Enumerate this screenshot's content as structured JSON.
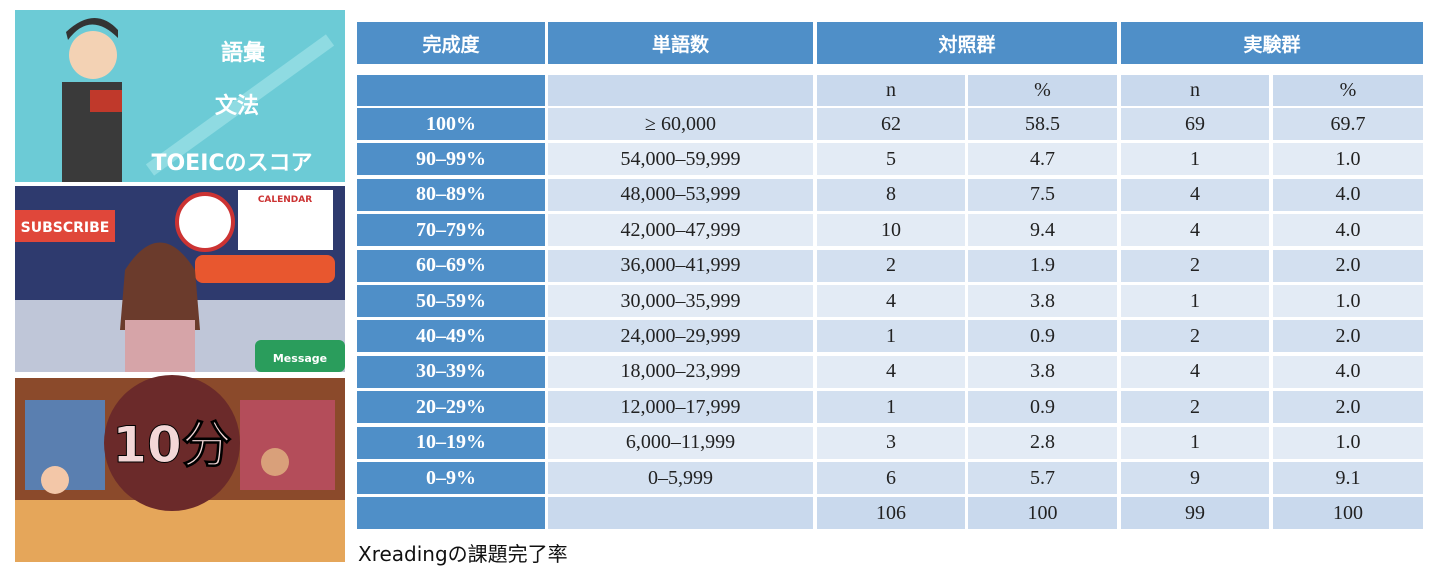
{
  "images": [
    {
      "texts": [
        "語彙",
        "文法",
        "TOEICのスコア"
      ]
    },
    {
      "texts": [
        "SUBSCRIBE",
        "CALENDAR",
        "Message"
      ]
    },
    {
      "texts": [
        "10分"
      ]
    }
  ],
  "table": {
    "headers": [
      "完成度",
      "単語数",
      "対照群",
      "実験群"
    ],
    "subheaders": [
      "n",
      "%",
      "n",
      "%"
    ],
    "rows": [
      [
        "100%",
        "≥ 60,000",
        "62",
        "58.5",
        "69",
        "69.7"
      ],
      [
        "90–99%",
        "54,000–59,999",
        "5",
        "4.7",
        "1",
        "1.0"
      ],
      [
        "80–89%",
        "48,000–53,999",
        "8",
        "7.5",
        "4",
        "4.0"
      ],
      [
        "70–79%",
        "42,000–47,999",
        "10",
        "9.4",
        "4",
        "4.0"
      ],
      [
        "60–69%",
        "36,000–41,999",
        "2",
        "1.9",
        "2",
        "2.0"
      ],
      [
        "50–59%",
        "30,000–35,999",
        "4",
        "3.8",
        "1",
        "1.0"
      ],
      [
        "40–49%",
        "24,000–29,999",
        "1",
        "0.9",
        "2",
        "2.0"
      ],
      [
        "30–39%",
        "18,000–23,999",
        "4",
        "3.8",
        "4",
        "4.0"
      ],
      [
        "20–29%",
        "12,000–17,999",
        "1",
        "0.9",
        "2",
        "2.0"
      ],
      [
        "10–19%",
        "6,000–11,999",
        "3",
        "2.8",
        "1",
        "1.0"
      ],
      [
        "0–9%",
        "0–5,999",
        "6",
        "5.7",
        "9",
        "9.1"
      ]
    ],
    "total": [
      "106",
      "100",
      "99",
      "100"
    ]
  },
  "caption": "Xreadingの課題完了率"
}
